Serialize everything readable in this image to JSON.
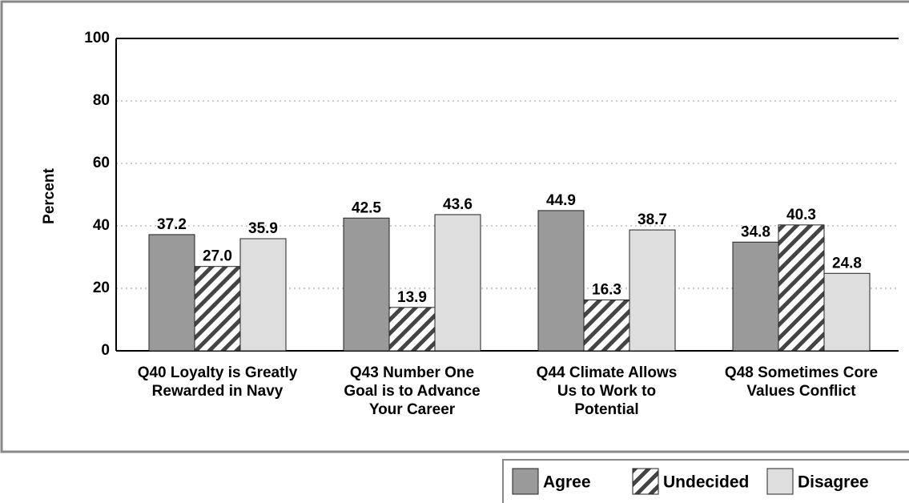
{
  "chart_data": {
    "type": "bar",
    "y_label": "Percent",
    "categories": [
      "Q40 Loyalty is Greatly Rewarded in Navy",
      "Q43 Number One Goal is to Advance Your Career",
      "Q44 Climate Allows Us to Work to Potential",
      "Q48 Sometimes Core Values Conflict"
    ],
    "series": [
      {
        "name": "Agree",
        "color": "#9a9a9a",
        "values": [
          37.2,
          42.5,
          44.9,
          34.8
        ],
        "value_labels": [
          "37.2",
          "42.5",
          "44.9",
          "34.8"
        ]
      },
      {
        "name": "Undecided",
        "color": "#444444",
        "pattern": "hatch",
        "values": [
          27.0,
          13.9,
          16.3,
          40.3
        ],
        "value_labels": [
          "27.0",
          "13.9",
          "16.3",
          "40.3"
        ]
      },
      {
        "name": "Disagree",
        "color": "#dedede",
        "values": [
          35.9,
          43.6,
          38.7,
          24.8
        ],
        "value_labels": [
          "35.9",
          "43.6",
          "38.7",
          "24.8"
        ]
      }
    ],
    "ylim": [
      0,
      100
    ],
    "yticks": [
      0,
      20,
      40,
      60,
      80,
      100
    ],
    "grid": true,
    "legend": "bottom-right"
  }
}
